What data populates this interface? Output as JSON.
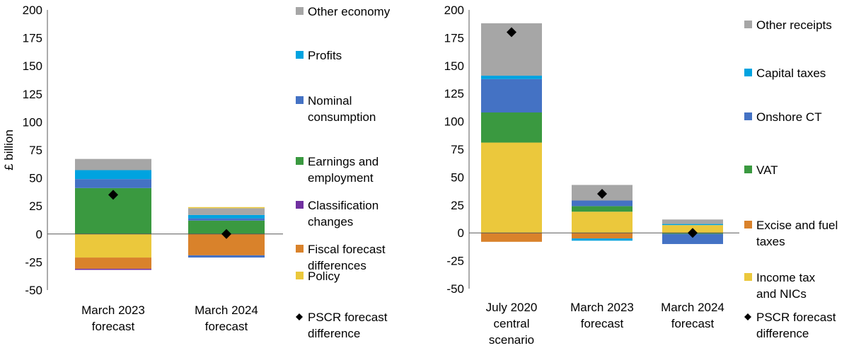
{
  "chart_data": [
    {
      "type": "bar",
      "stacked": true,
      "ylabel": "£ billion",
      "ylim": [
        -50,
        200
      ],
      "yticks": [
        -50,
        -25,
        0,
        25,
        50,
        75,
        100,
        125,
        150,
        175,
        200
      ],
      "categories": [
        [
          "March 2023",
          "forecast"
        ],
        [
          "March 2024",
          "forecast"
        ]
      ],
      "series": [
        {
          "name": "Other economy",
          "color": "#a6a6a6",
          "values": [
            10,
            6
          ]
        },
        {
          "name": "Profits",
          "color": "#00a3e0",
          "values": [
            8,
            3
          ]
        },
        {
          "name": "Nominal consumption",
          "name_lines": [
            "Nominal",
            "consumption"
          ],
          "color": "#4472c4",
          "values": [
            8,
            2
          ]
        },
        {
          "name": "Earnings and employment",
          "name_lines": [
            "Earnings and",
            "employment"
          ],
          "color": "#3a9940",
          "values": [
            41,
            12
          ]
        },
        {
          "name": "Classification changes",
          "name_lines": [
            "Classification",
            "changes"
          ],
          "color": "#7030a0",
          "values": [
            -1,
            0
          ]
        },
        {
          "name": "Fiscal forecast differences",
          "name_lines": [
            "Fiscal forecast",
            "differences"
          ],
          "color": "#d9822b",
          "values": [
            -10,
            -19
          ]
        },
        {
          "name": "Policy",
          "color": "#ebc83c",
          "values": [
            -21,
            0
          ]
        }
      ],
      "extra_negative": [
        {
          "color": "#4472c4",
          "values": [
            0,
            -2
          ]
        }
      ],
      "extra_positive": [
        {
          "color": "#ebc83c",
          "values": [
            0,
            1
          ]
        }
      ],
      "markers": {
        "name": "PSCR forecast difference",
        "name_lines": [
          "PSCR forecast",
          "difference"
        ],
        "values": [
          35,
          0
        ]
      }
    },
    {
      "type": "bar",
      "stacked": true,
      "ylabel": "",
      "ylim": [
        -50,
        200
      ],
      "yticks": [
        -50,
        -25,
        0,
        25,
        50,
        75,
        100,
        125,
        150,
        175,
        200
      ],
      "categories": [
        [
          "July 2020",
          "central",
          "scenario"
        ],
        [
          "March 2023",
          "forecast"
        ],
        [
          "March 2024",
          "forecast"
        ]
      ],
      "series": [
        {
          "name": "Other receipts",
          "color": "#a6a6a6",
          "values": [
            47,
            14,
            4
          ]
        },
        {
          "name": "Capital taxes",
          "color": "#00a3e0",
          "values": [
            3,
            0,
            1
          ]
        },
        {
          "name": "Onshore CT",
          "color": "#4472c4",
          "values": [
            30,
            5,
            -9
          ]
        },
        {
          "name": "VAT",
          "color": "#3a9940",
          "values": [
            27,
            5,
            -1
          ]
        },
        {
          "name": "Excise and fuel taxes",
          "name_lines": [
            "Excise and fuel",
            "taxes"
          ],
          "color": "#d9822b",
          "values": [
            -8,
            -5,
            0
          ]
        },
        {
          "name": "Income tax and NICs",
          "name_lines": [
            "Income tax",
            "and NICs"
          ],
          "color": "#ebc83c",
          "values": [
            81,
            19,
            7
          ]
        }
      ],
      "extra_negative": [
        {
          "color": "#00a3e0",
          "values": [
            0,
            -2,
            0
          ]
        }
      ],
      "markers": {
        "name": "PSCR forecast difference",
        "name_lines": [
          "PSCR forecast",
          "difference"
        ],
        "values": [
          180,
          35,
          0
        ]
      }
    }
  ]
}
